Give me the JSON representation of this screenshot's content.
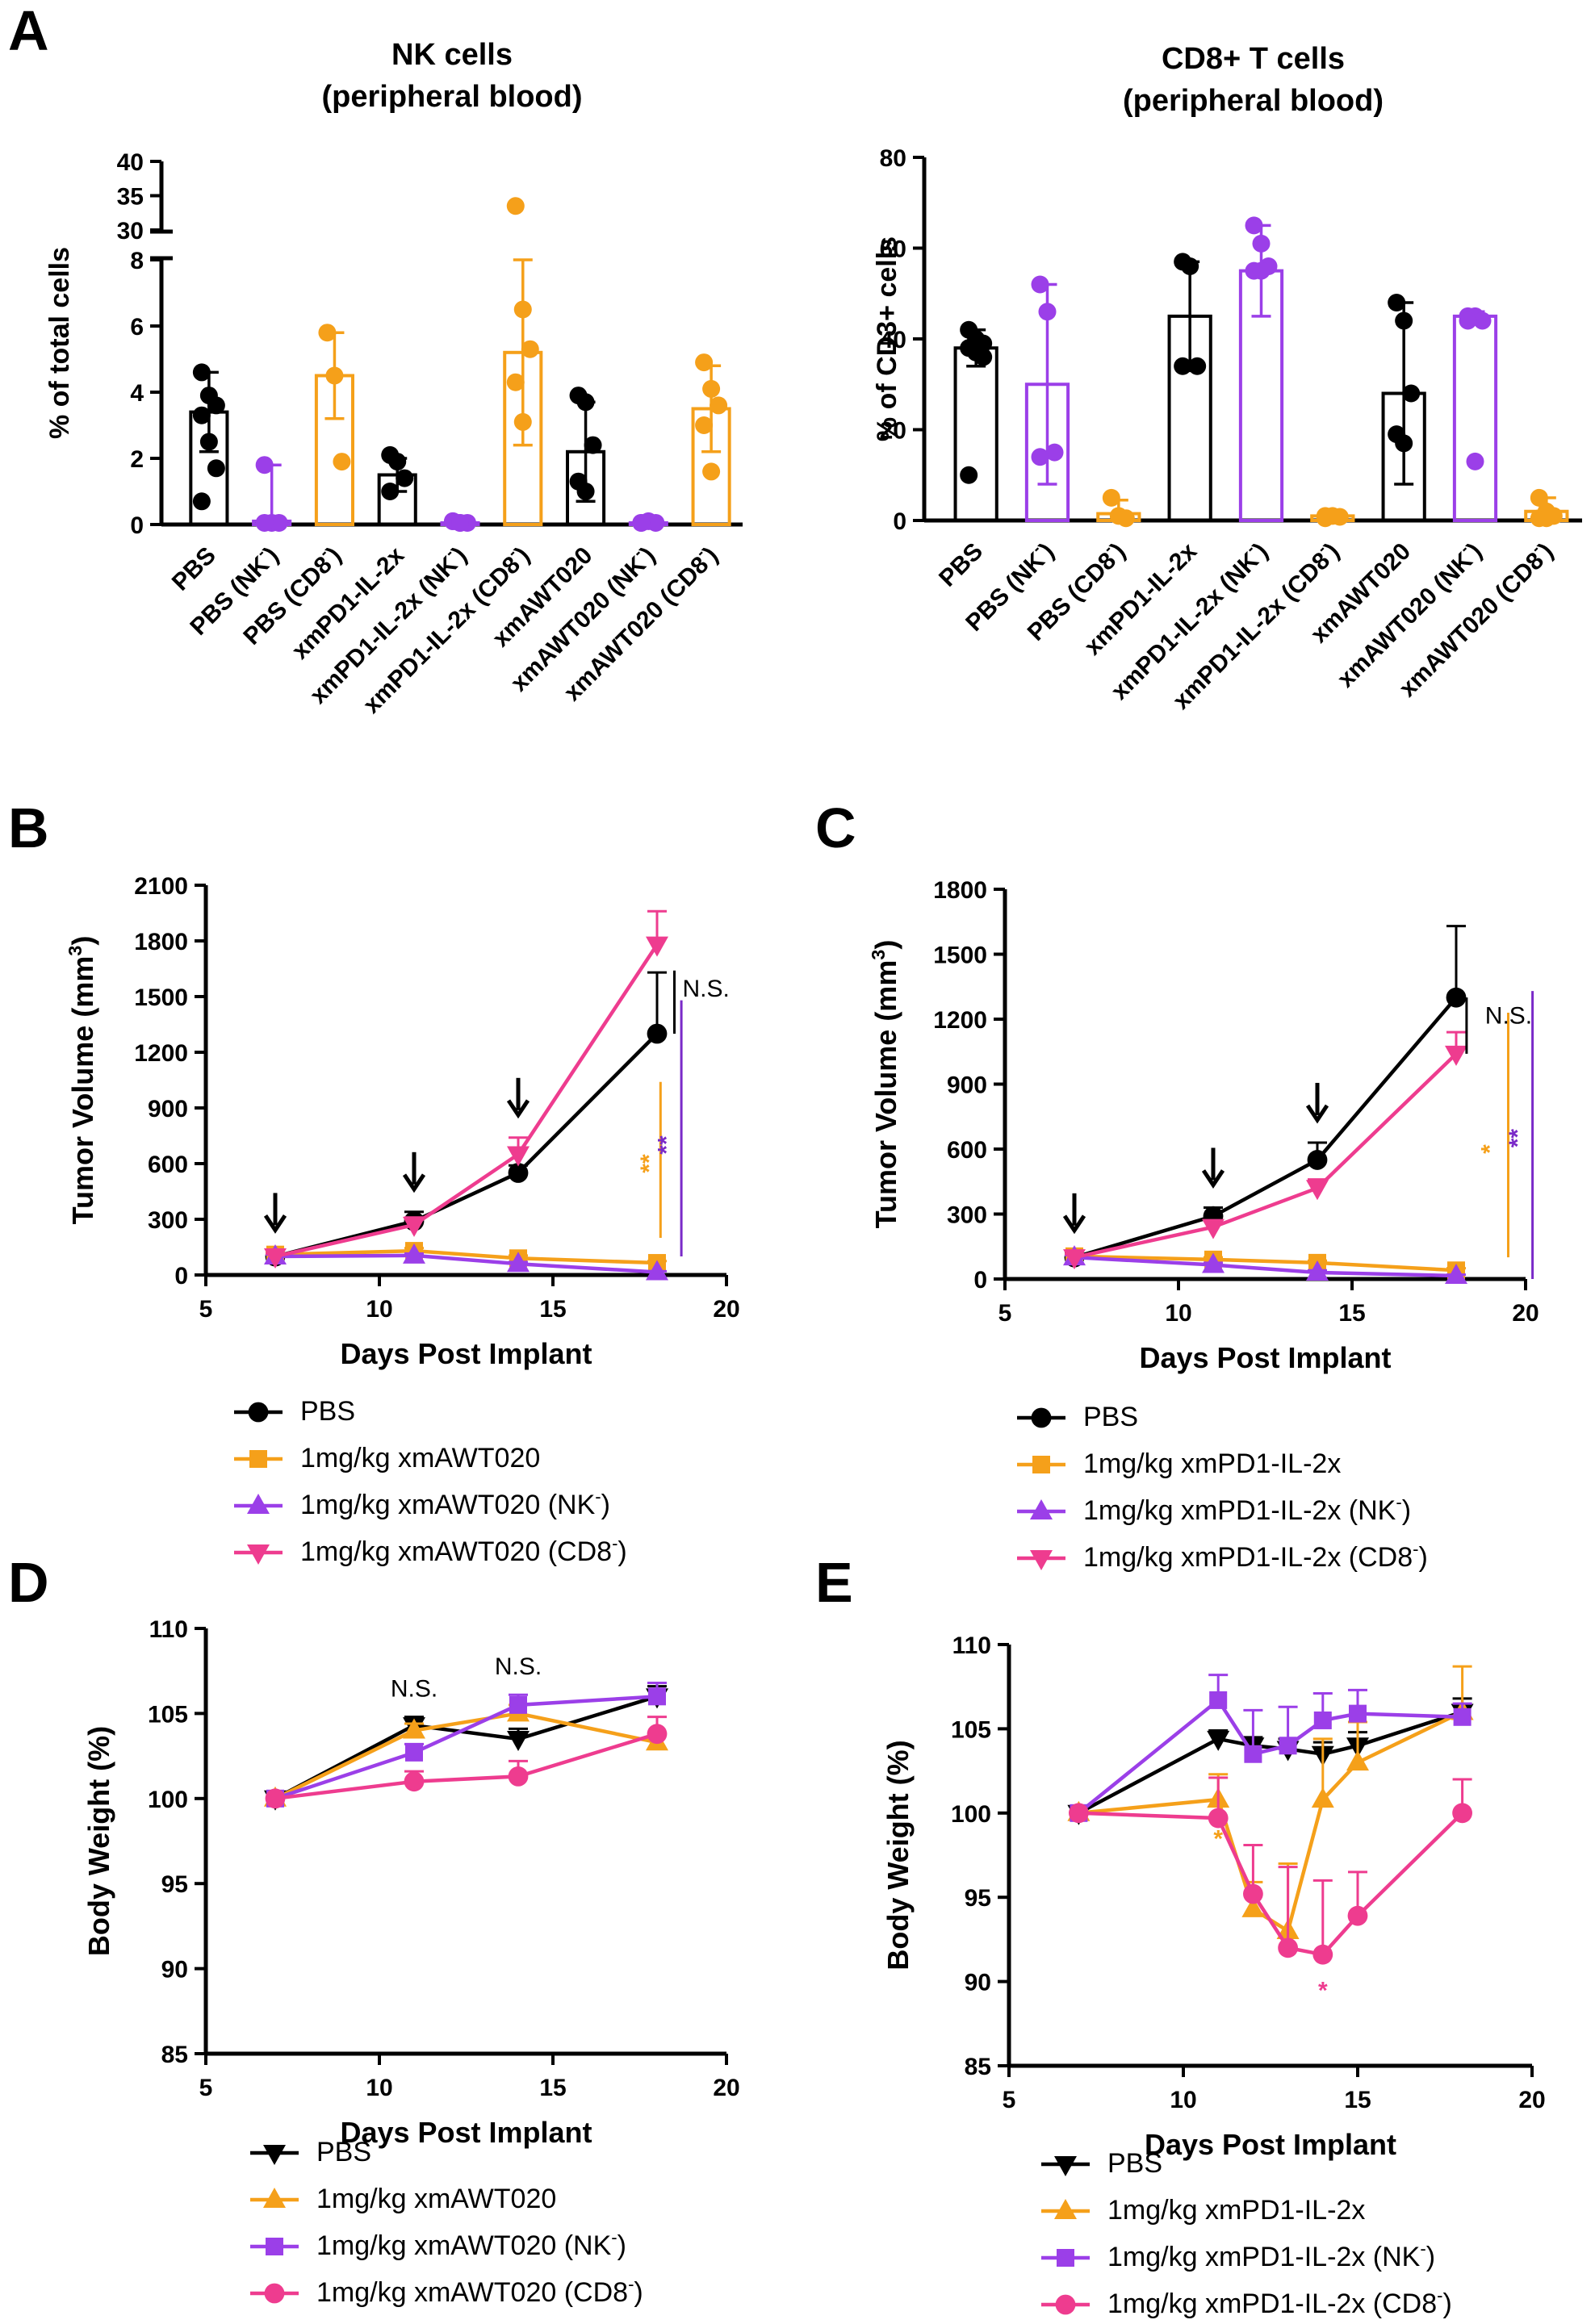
{
  "colors": {
    "black": "#000000",
    "orange": "#F5A01A",
    "purple": "#9B3FE8",
    "pink": "#EE3C8F",
    "darkpurple": "#7A2AC8"
  },
  "chart_data": [
    {
      "id": "A1",
      "panel_label": "A",
      "type": "bar",
      "title": [
        "NK cells",
        "(peripheral blood)"
      ],
      "ylabel": "% of total cells",
      "ylim_lower": [
        0,
        8
      ],
      "ylim_upper": [
        30,
        40
      ],
      "yticks": [
        "0",
        "2",
        "4",
        "6",
        "8",
        "30",
        "35",
        "40"
      ],
      "categories": [
        {
          "label": "PBS",
          "sup": ""
        },
        {
          "label": "PBS (NK",
          "sup": "-",
          "tail": ")"
        },
        {
          "label": "PBS (CD8",
          "sup": "-",
          "tail": ")"
        },
        {
          "label": "xmPD1-IL-2x",
          "sup": ""
        },
        {
          "label": "xmPD1-IL-2x (NK",
          "sup": "-",
          "tail": ")"
        },
        {
          "label": "xmPD1-IL-2x (CD8",
          "sup": "-",
          "tail": ")"
        },
        {
          "label": "xmAWT020",
          "sup": ""
        },
        {
          "label": "xmAWT020 (NK",
          "sup": "-",
          "tail": ")"
        },
        {
          "label": "xmAWT020 (CD8",
          "sup": "-",
          "tail": ")"
        }
      ],
      "series_colors": [
        "black",
        "purple",
        "orange",
        "black",
        "purple",
        "orange",
        "black",
        "purple",
        "orange"
      ],
      "values": [
        3.4,
        0.1,
        4.5,
        1.5,
        0.05,
        5.2,
        2.2,
        0.05,
        3.5
      ],
      "sd": [
        1.2,
        1.7,
        1.3,
        0.5,
        0.1,
        2.8,
        1.5,
        0.1,
        1.3
      ],
      "points": [
        [
          4.6,
          3.9,
          3.6,
          3.3,
          2.5,
          1.7,
          0.7
        ],
        [
          1.8,
          0.05,
          0.05,
          0.05
        ],
        [
          5.8,
          4.5,
          1.9
        ],
        [
          2.1,
          1.9,
          1.4,
          1.0
        ],
        [
          0.1,
          0.05,
          0.05,
          0.1,
          0.05
        ],
        [
          33.5,
          6.5,
          5.3,
          4.3,
          3.1
        ],
        [
          3.9,
          3.7,
          2.4,
          1.3,
          1.0
        ],
        [
          0.05,
          0.1,
          0.05,
          0.05
        ],
        [
          4.9,
          4.1,
          3.6,
          3.0,
          1.6
        ]
      ]
    },
    {
      "id": "A2",
      "panel_label": "",
      "type": "bar",
      "title": [
        "CD8+ T cells",
        "(peripheral blood)"
      ],
      "ylabel": "% of CD3+ cells",
      "ylim": [
        0,
        80
      ],
      "yticks": [
        "0",
        "20",
        "40",
        "60",
        "80"
      ],
      "categories": [
        {
          "label": "PBS",
          "sup": ""
        },
        {
          "label": "PBS (NK",
          "sup": "-",
          "tail": ")"
        },
        {
          "label": "PBS (CD8",
          "sup": "-",
          "tail": ")"
        },
        {
          "label": "xmPD1-IL-2x",
          "sup": ""
        },
        {
          "label": "xmPD1-IL-2x (NK",
          "sup": "-",
          "tail": ")"
        },
        {
          "label": "xmPD1-IL-2x (CD8",
          "sup": "-",
          "tail": ")"
        },
        {
          "label": "xmAWT020",
          "sup": ""
        },
        {
          "label": "xmAWT020 (NK",
          "sup": "-",
          "tail": ")"
        },
        {
          "label": "xmAWT020 (CD8",
          "sup": "-",
          "tail": ")"
        }
      ],
      "series_colors": [
        "black",
        "purple",
        "orange",
        "black",
        "purple",
        "orange",
        "black",
        "purple",
        "orange"
      ],
      "values": [
        38,
        30,
        1.5,
        45,
        55,
        1.0,
        28,
        45,
        2.0
      ],
      "sd": [
        4,
        22,
        3,
        12,
        10,
        0.5,
        20,
        1,
        3
      ],
      "points": [
        [
          42,
          40,
          39,
          38,
          37,
          36,
          10
        ],
        [
          52,
          46,
          15,
          14
        ],
        [
          5,
          1,
          0.5
        ],
        [
          57,
          56,
          34,
          34
        ],
        [
          65,
          61,
          56,
          55,
          55
        ],
        [
          1,
          1,
          0.8,
          0.5
        ],
        [
          48,
          44,
          28,
          19,
          17
        ],
        [
          45,
          45,
          44,
          44,
          13
        ],
        [
          5,
          2,
          1,
          0.5,
          0.5
        ]
      ]
    },
    {
      "id": "B",
      "panel_label": "B",
      "type": "line",
      "xlabel": "Days Post Implant",
      "ylabel": "Tumor Volume (mm",
      "ylabel_sup": "3",
      "ylabel_tail": ")",
      "xlim": [
        5,
        20
      ],
      "ylim": [
        0,
        2100
      ],
      "xticks": [
        5,
        10,
        15,
        20
      ],
      "yticks": [
        0,
        300,
        600,
        900,
        1200,
        1500,
        1800,
        2100
      ],
      "x": [
        7,
        11,
        14,
        18
      ],
      "arrows_x": [
        7,
        11,
        14
      ],
      "series": [
        {
          "name": "PBS",
          "sup": "",
          "tail": "",
          "color": "black",
          "marker": "circle",
          "values": [
            100,
            290,
            550,
            1300
          ],
          "err": [
            20,
            50,
            40,
            330
          ]
        },
        {
          "name": "1mg/kg xmAWT020",
          "sup": "",
          "tail": "",
          "color": "orange",
          "marker": "square",
          "values": [
            110,
            130,
            90,
            65
          ],
          "err": [
            10,
            15,
            15,
            10
          ]
        },
        {
          "name": "1mg/kg xmAWT020 (NK",
          "sup": "-",
          "tail": ")",
          "color": "purple",
          "marker": "triangle-up",
          "values": [
            100,
            105,
            60,
            15
          ],
          "err": [
            10,
            10,
            10,
            5
          ]
        },
        {
          "name": "1mg/kg xmAWT020 (CD8",
          "sup": "-",
          "tail": ")",
          "color": "pink",
          "marker": "triangle-down",
          "values": [
            100,
            270,
            650,
            1780
          ],
          "err": [
            15,
            40,
            90,
            180
          ]
        }
      ],
      "annotations": [
        {
          "text": "N.S.",
          "color": "black",
          "x": 18.5,
          "y": 1500
        },
        {
          "text": "**",
          "color": "orange",
          "x": 18,
          "y": 600
        },
        {
          "text": "**",
          "color": "darkpurple",
          "x": 18.5,
          "y": 700
        }
      ],
      "sig_bars": [
        {
          "color": "black",
          "x": 18.5,
          "y1": 1300,
          "y2": 1640
        },
        {
          "color": "orange",
          "x": 18.1,
          "y1": 200,
          "y2": 1040
        },
        {
          "color": "darkpurple",
          "x": 18.7,
          "y1": 100,
          "y2": 1480
        }
      ]
    },
    {
      "id": "C",
      "panel_label": "C",
      "type": "line",
      "xlabel": "Days Post Implant",
      "ylabel": "Tumor Volume (mm",
      "ylabel_sup": "3",
      "ylabel_tail": ")",
      "xlim": [
        5,
        20
      ],
      "ylim": [
        0,
        1800
      ],
      "xticks": [
        5,
        10,
        15,
        20
      ],
      "yticks": [
        0,
        300,
        600,
        900,
        1200,
        1500,
        1800
      ],
      "x": [
        7,
        11,
        14,
        18
      ],
      "arrows_x": [
        7,
        11,
        14
      ],
      "series": [
        {
          "name": "PBS",
          "sup": "",
          "tail": "",
          "color": "black",
          "marker": "circle",
          "values": [
            100,
            290,
            550,
            1300
          ],
          "err": [
            20,
            40,
            80,
            330
          ]
        },
        {
          "name": "1mg/kg xmPD1-IL-2x",
          "sup": "",
          "tail": "",
          "color": "orange",
          "marker": "square",
          "values": [
            105,
            90,
            75,
            40
          ],
          "err": [
            10,
            10,
            10,
            10
          ]
        },
        {
          "name": "1mg/kg xmPD1-IL-2x (NK",
          "sup": "-",
          "tail": ")",
          "color": "purple",
          "marker": "triangle-up",
          "values": [
            100,
            65,
            30,
            15
          ],
          "err": [
            10,
            10,
            10,
            5
          ]
        },
        {
          "name": "1mg/kg xmPD1-IL-2x (CD8",
          "sup": "-",
          "tail": ")",
          "color": "pink",
          "marker": "triangle-down",
          "values": [
            100,
            240,
            420,
            1040
          ],
          "err": [
            15,
            30,
            40,
            100
          ]
        }
      ],
      "annotations": [
        {
          "text": "N.S.",
          "color": "black",
          "x": 18.6,
          "y": 1180
        },
        {
          "text": "*",
          "color": "orange",
          "x": 19.2,
          "y": 600
        },
        {
          "text": "**",
          "color": "darkpurple",
          "x": 20,
          "y": 650
        }
      ],
      "sig_bars": [
        {
          "color": "black",
          "x": 18.3,
          "y1": 1040,
          "y2": 1300
        },
        {
          "color": "orange",
          "x": 19.5,
          "y1": 100,
          "y2": 1230
        },
        {
          "color": "darkpurple",
          "x": 20.2,
          "y1": 0,
          "y2": 1330
        }
      ]
    },
    {
      "id": "D",
      "panel_label": "D",
      "type": "line",
      "xlabel": "Days Post Implant",
      "ylabel": "Body Weight (%)",
      "xlim": [
        5,
        20
      ],
      "ylim": [
        85,
        110
      ],
      "xticks": [
        5,
        10,
        15,
        20
      ],
      "yticks": [
        85,
        90,
        95,
        100,
        105,
        110
      ],
      "x": [
        7,
        11,
        14,
        18
      ],
      "series": [
        {
          "name": "PBS",
          "sup": "",
          "tail": "",
          "color": "black",
          "marker": "triangle-down",
          "values": [
            100,
            104.3,
            103.5,
            106
          ],
          "err": [
            0,
            0.5,
            0.6,
            0.6
          ]
        },
        {
          "name": "1mg/kg xmAWT020",
          "sup": "",
          "tail": "",
          "color": "orange",
          "marker": "triangle-up",
          "values": [
            100,
            104,
            105,
            103.3
          ],
          "err": [
            0,
            0.4,
            0.5,
            0.5
          ]
        },
        {
          "name": "1mg/kg xmAWT020 (NK",
          "sup": "-",
          "tail": ")",
          "color": "purple",
          "marker": "square",
          "values": [
            100,
            102.7,
            105.5,
            106
          ],
          "err": [
            0,
            0.5,
            0.6,
            0.8
          ]
        },
        {
          "name": "1mg/kg xmAWT020 (CD8",
          "sup": "-",
          "tail": ")",
          "color": "pink",
          "marker": "circle",
          "values": [
            100,
            101,
            101.3,
            103.8
          ],
          "err": [
            0,
            0.6,
            0.9,
            1.0
          ]
        }
      ],
      "annotations": [
        {
          "text": "N.S.",
          "color": "black",
          "x": 11,
          "y": 106
        },
        {
          "text": "N.S.",
          "color": "black",
          "x": 14,
          "y": 107.3
        }
      ]
    },
    {
      "id": "E",
      "panel_label": "E",
      "type": "line",
      "xlabel": "Days Post Implant",
      "ylabel": "Body Weight (%)",
      "xlim": [
        5,
        20
      ],
      "ylim": [
        85,
        110
      ],
      "xticks": [
        5,
        10,
        15,
        20
      ],
      "yticks": [
        85,
        90,
        95,
        100,
        105,
        110
      ],
      "x": [
        7,
        11,
        12,
        13,
        14,
        15,
        18
      ],
      "series": [
        {
          "name": "PBS",
          "sup": "",
          "tail": "",
          "color": "black",
          "marker": "triangle-down",
          "values": [
            100,
            104.4,
            104,
            103.8,
            103.5,
            104,
            106
          ],
          "err": [
            0,
            0.5,
            0.5,
            0.6,
            0.7,
            0.8,
            0.8
          ]
        },
        {
          "name": "1mg/kg xmPD1-IL-2x",
          "sup": "",
          "tail": "",
          "color": "orange",
          "marker": "triangle-up",
          "values": [
            100,
            100.8,
            94.3,
            93,
            100.8,
            103,
            106
          ],
          "err": [
            0,
            1.5,
            1.6,
            4.0,
            3.6,
            2.4,
            2.7
          ]
        },
        {
          "name": "1mg/kg xmPD1-IL-2x (NK",
          "sup": "-",
          "tail": ")",
          "color": "purple",
          "marker": "square",
          "values": [
            100,
            106.7,
            103.5,
            104,
            105.5,
            105.9,
            105.7
          ],
          "err": [
            0,
            1.5,
            2.6,
            2.3,
            1.6,
            1.4,
            0.8
          ]
        },
        {
          "name": "1mg/kg xmPD1-IL-2x (CD8",
          "sup": "-",
          "tail": ")",
          "color": "pink",
          "marker": "circle",
          "values": [
            100,
            99.7,
            95.2,
            92,
            91.6,
            93.9,
            100
          ],
          "err": [
            0,
            2.4,
            2.9,
            4.8,
            4.4,
            2.6,
            2.0
          ]
        }
      ],
      "annotations": [
        {
          "text": "*",
          "color": "orange",
          "x": 11,
          "y": 98
        },
        {
          "text": "*",
          "color": "pink",
          "x": 14,
          "y": 89
        }
      ]
    }
  ]
}
